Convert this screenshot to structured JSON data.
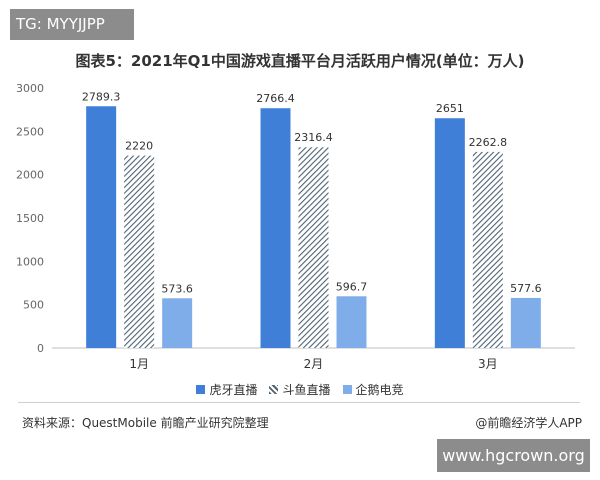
{
  "watermark_top": "TG: MYYJJPP",
  "watermark_bottom": "www.hgcrown.org",
  "title": "图表5：2021年Q1中国游戏直播平台月活跃用户情况(单位：万人)",
  "source": "资料来源：QuestMobile 前瞻产业研究院整理",
  "credit": "@前瞻经济学人APP",
  "chart_data": {
    "type": "bar",
    "title": "图表5：2021年Q1中国游戏直播平台月活跃用户情况(单位：万人)",
    "categories": [
      "1月",
      "2月",
      "3月"
    ],
    "series": [
      {
        "name": "虎牙直播",
        "values": [
          2789.3,
          2766.4,
          2651
        ],
        "color": "#3f7fd8",
        "pattern": "solid"
      },
      {
        "name": "斗鱼直播",
        "values": [
          2220,
          2316.4,
          2262.8
        ],
        "color": "#4f6272",
        "pattern": "hatched"
      },
      {
        "name": "企鹅电竞",
        "values": [
          573.6,
          596.7,
          577.6
        ],
        "color": "#7fadea",
        "pattern": "solid"
      }
    ],
    "value_labels": [
      [
        "2789.3",
        "2766.4",
        "2651"
      ],
      [
        "2220",
        "2316.4",
        "2262.8"
      ],
      [
        "573.6",
        "596.7",
        "577.6"
      ]
    ],
    "yticks": [
      "0",
      "500",
      "1000",
      "1500",
      "2000",
      "2500",
      "3000"
    ],
    "ylim": [
      0,
      3000
    ],
    "legend_position": "bottom",
    "grid": false
  }
}
